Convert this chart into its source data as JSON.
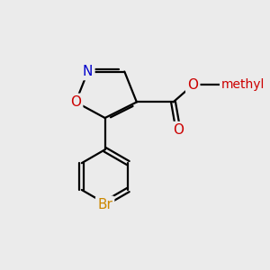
{
  "bg_color": "#ebebeb",
  "bond_color": "#000000",
  "bond_width": 1.6,
  "atom_colors": {
    "N": "#0000cc",
    "O": "#cc0000",
    "Br": "#cc8800"
  },
  "font_size": 11
}
